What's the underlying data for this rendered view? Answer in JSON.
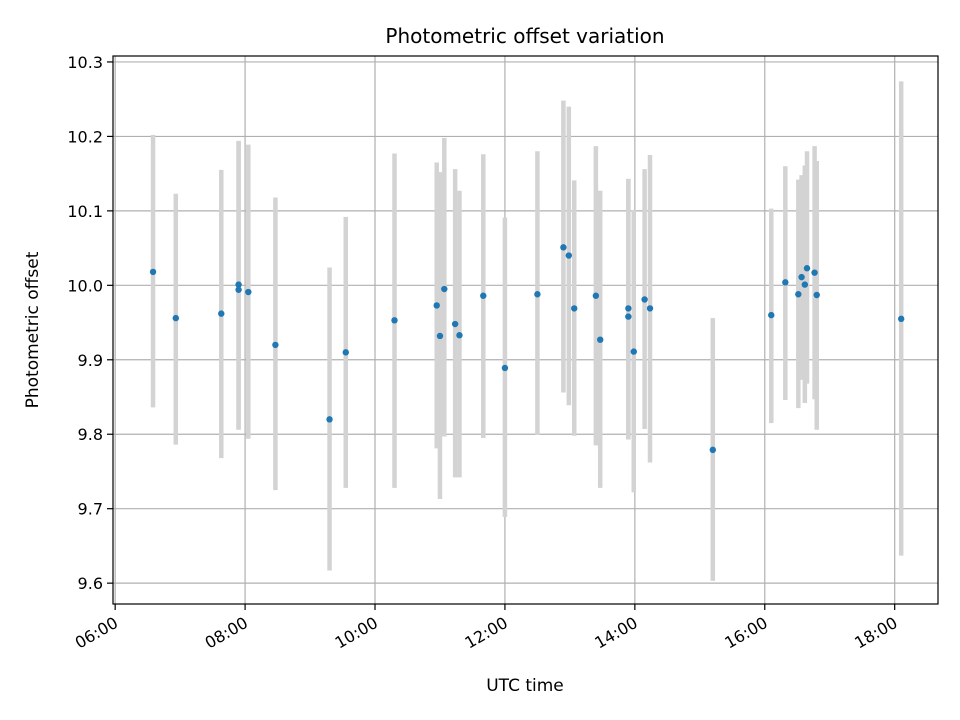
{
  "chart_data": {
    "type": "scatter",
    "title": "Photometric offset variation",
    "xlabel": "UTC time",
    "ylabel": "Photometric offset",
    "x_ticks": [
      "06:00",
      "08:00",
      "10:00",
      "12:00",
      "14:00",
      "16:00",
      "18:00"
    ],
    "y_ticks": [
      "9.6",
      "9.7",
      "9.8",
      "9.9",
      "10.0",
      "10.1",
      "10.2",
      "10.3"
    ],
    "xlim": [
      "05:58",
      "18:40"
    ],
    "ylim": [
      9.572,
      10.308
    ],
    "grid": true,
    "point_color": "#1f77b4",
    "errorbar_color": "#d3d3d3",
    "points": [
      {
        "x": "06:35",
        "y": 10.018,
        "lo": 9.836,
        "hi": 10.202
      },
      {
        "x": "06:56",
        "y": 9.956,
        "lo": 9.786,
        "hi": 10.123
      },
      {
        "x": "07:38",
        "y": 9.962,
        "lo": 9.768,
        "hi": 10.155
      },
      {
        "x": "07:54",
        "y": 10.001,
        "lo": 9.807,
        "hi": 10.194
      },
      {
        "x": "07:54",
        "y": 9.994,
        "lo": 9.806,
        "hi": 10.193
      },
      {
        "x": "08:03",
        "y": 9.991,
        "lo": 9.794,
        "hi": 10.189
      },
      {
        "x": "08:28",
        "y": 9.92,
        "lo": 9.725,
        "hi": 10.118
      },
      {
        "x": "09:18",
        "y": 9.82,
        "lo": 9.617,
        "hi": 10.024
      },
      {
        "x": "09:33",
        "y": 9.91,
        "lo": 9.728,
        "hi": 10.092
      },
      {
        "x": "10:18",
        "y": 9.953,
        "lo": 9.728,
        "hi": 10.177
      },
      {
        "x": "10:57",
        "y": 9.973,
        "lo": 9.781,
        "hi": 10.165
      },
      {
        "x": "11:00",
        "y": 9.932,
        "lo": 9.713,
        "hi": 10.152
      },
      {
        "x": "11:04",
        "y": 9.995,
        "lo": 9.797,
        "hi": 10.198
      },
      {
        "x": "11:14",
        "y": 9.948,
        "lo": 9.742,
        "hi": 10.156
      },
      {
        "x": "11:18",
        "y": 9.933,
        "lo": 9.742,
        "hi": 10.127
      },
      {
        "x": "11:40",
        "y": 9.986,
        "lo": 9.795,
        "hi": 10.176
      },
      {
        "x": "12:00",
        "y": 9.889,
        "lo": 9.689,
        "hi": 10.091
      },
      {
        "x": "12:30",
        "y": 9.988,
        "lo": 9.799,
        "hi": 10.18
      },
      {
        "x": "12:54",
        "y": 10.051,
        "lo": 9.856,
        "hi": 10.248
      },
      {
        "x": "12:59",
        "y": 10.04,
        "lo": 9.839,
        "hi": 10.24
      },
      {
        "x": "13:04",
        "y": 9.969,
        "lo": 9.798,
        "hi": 10.141
      },
      {
        "x": "13:24",
        "y": 9.986,
        "lo": 9.785,
        "hi": 10.187
      },
      {
        "x": "13:28",
        "y": 9.927,
        "lo": 9.728,
        "hi": 10.127
      },
      {
        "x": "13:54",
        "y": 9.969,
        "lo": 9.793,
        "hi": 10.143
      },
      {
        "x": "13:54",
        "y": 9.958,
        "lo": 9.793,
        "hi": 10.143
      },
      {
        "x": "13:59",
        "y": 9.911,
        "lo": 9.722,
        "hi": 10.101
      },
      {
        "x": "14:09",
        "y": 9.981,
        "lo": 9.807,
        "hi": 10.156
      },
      {
        "x": "14:14",
        "y": 9.969,
        "lo": 9.762,
        "hi": 10.175
      },
      {
        "x": "15:12",
        "y": 9.779,
        "lo": 9.603,
        "hi": 9.956
      },
      {
        "x": "16:06",
        "y": 9.96,
        "lo": 9.815,
        "hi": 10.103
      },
      {
        "x": "16:19",
        "y": 10.004,
        "lo": 9.846,
        "hi": 10.16
      },
      {
        "x": "16:31",
        "y": 9.988,
        "lo": 9.835,
        "hi": 10.142
      },
      {
        "x": "16:34",
        "y": 10.011,
        "lo": 9.873,
        "hi": 10.148
      },
      {
        "x": "16:37",
        "y": 10.001,
        "lo": 9.842,
        "hi": 10.161
      },
      {
        "x": "16:39",
        "y": 10.023,
        "lo": 9.868,
        "hi": 10.18
      },
      {
        "x": "16:46",
        "y": 10.017,
        "lo": 9.847,
        "hi": 10.187
      },
      {
        "x": "16:48",
        "y": 9.987,
        "lo": 9.806,
        "hi": 10.167
      },
      {
        "x": "18:06",
        "y": 9.955,
        "lo": 9.637,
        "hi": 10.274
      }
    ]
  }
}
